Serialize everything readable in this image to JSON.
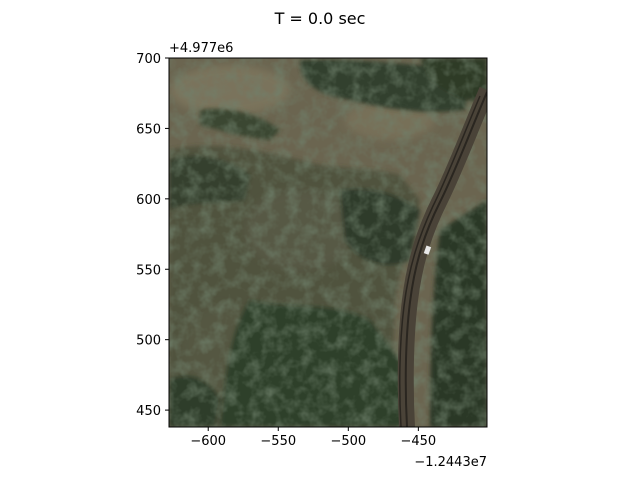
{
  "figure": {
    "title": "T = 0.0 sec"
  },
  "map": {
    "imagery": "aerial-satellite-terrain",
    "features": [
      "tan-dry-grass",
      "dark-green-tree-canopy",
      "railway-track-curve",
      "small-white-vehicle"
    ],
    "x_offset_label": "−1.2443e7",
    "y_offset_label": "+4.977e6",
    "xlim": [
      -628,
      -401
    ],
    "ylim": [
      438,
      700
    ],
    "x_ticks": [
      -600,
      -550,
      -500,
      -450
    ],
    "x_tick_labels": [
      "−600",
      "−550",
      "−500",
      "−450"
    ],
    "y_ticks": [
      450,
      500,
      550,
      600,
      650,
      700
    ],
    "y_tick_labels": [
      "450",
      "500",
      "550",
      "600",
      "650",
      "700"
    ]
  },
  "colors": {
    "grass": "#6b6550",
    "tree_dark": "#2c3a28",
    "tree_mid": "#37452f",
    "rail": "#4a4338",
    "frame": "#000000"
  }
}
